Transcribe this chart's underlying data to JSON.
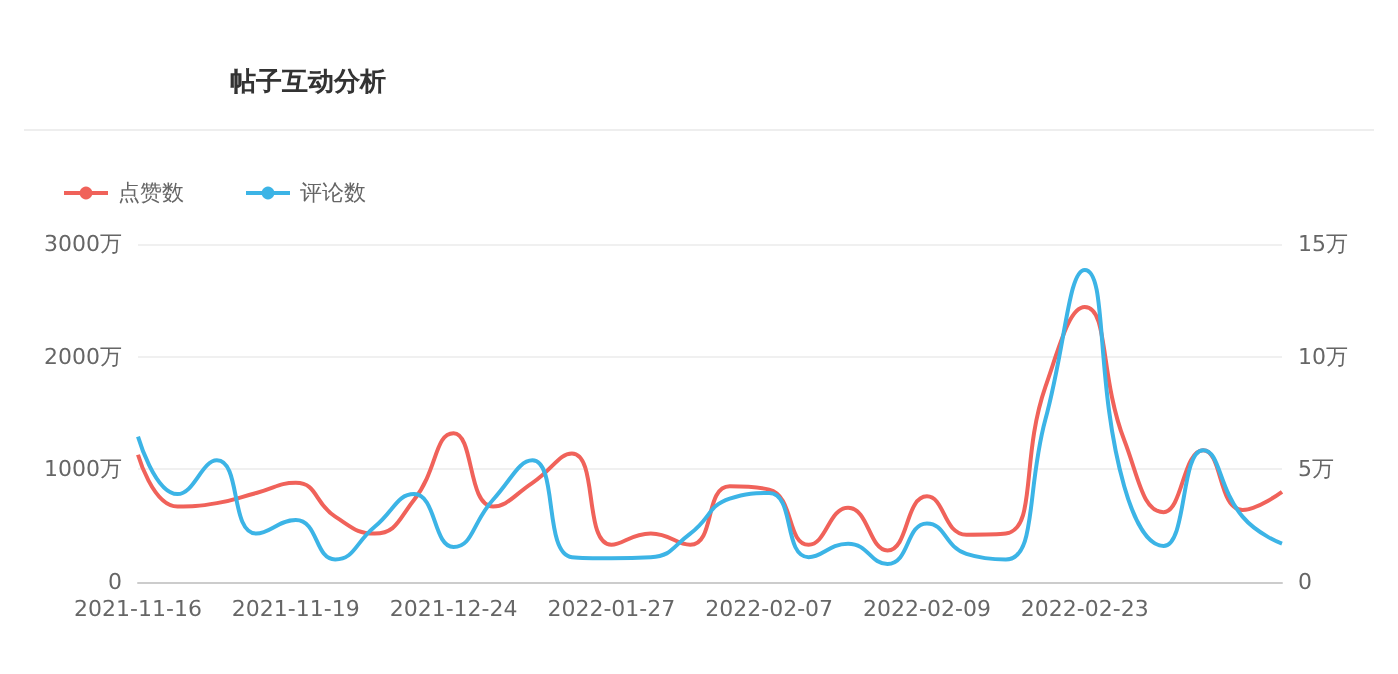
{
  "chart_data": {
    "type": "line",
    "title": "帖子互动分析",
    "categories": [
      "2021-11-16",
      null,
      null,
      null,
      "2021-11-19",
      null,
      null,
      null,
      "2021-12-24",
      null,
      null,
      null,
      "2022-01-27",
      null,
      null,
      null,
      "2022-02-07",
      null,
      null,
      null,
      "2022-02-09",
      null,
      null,
      null,
      "2022-02-23",
      null,
      null,
      null,
      null,
      null
    ],
    "series": [
      {
        "name": "点赞数",
        "color": "#f0625a",
        "values": [
          1130,
          670,
          700,
          790,
          880,
          580,
          430,
          730,
          1320,
          670,
          880,
          1140,
          330,
          430,
          330,
          850,
          820,
          330,
          660,
          280,
          760,
          420,
          430,
          1730,
          2440,
          1260,
          620,
          1170,
          640,
          800
        ]
      },
      {
        "name": "评论数",
        "color": "#3cb4e6",
        "axis": "y2",
        "values": [
          6.45,
          3.9,
          5.4,
          2.15,
          2.75,
          1.0,
          2.45,
          3.9,
          1.55,
          3.65,
          5.4,
          1.1,
          1.05,
          1.1,
          2.15,
          3.7,
          3.95,
          1.1,
          1.7,
          0.8,
          2.6,
          1.25,
          1.0,
          7.2,
          13.85,
          4.25,
          1.6,
          5.85,
          2.9,
          1.7
        ]
      }
    ],
    "ylim": [
      0,
      3000
    ],
    "yticks": [
      0,
      {
        "value": 1000,
        "label": "1000万"
      },
      {
        "value": 2000,
        "label": "2000万"
      },
      {
        "value": 3000,
        "label": "3000万"
      }
    ],
    "y2lim": [
      0,
      15
    ],
    "y2ticks": [
      0,
      {
        "value": 5,
        "label": "5万"
      },
      {
        "value": 10,
        "label": "10万"
      },
      {
        "value": 15,
        "label": "15万"
      }
    ],
    "grid": "y",
    "legend": "top left",
    "marker": "none",
    "line_style": "solid"
  }
}
